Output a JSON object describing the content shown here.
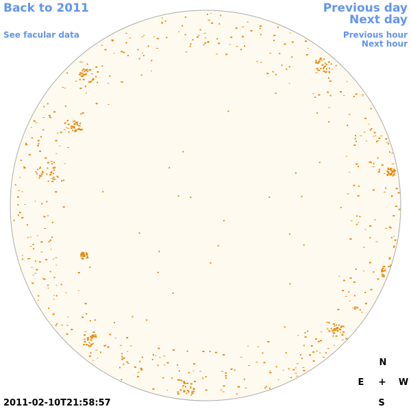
{
  "nav": {
    "back_year": "Back to 2011",
    "see_facular": "See facular data",
    "previous_day": "Previous day",
    "next_day": "Next day",
    "previous_hour": "Previous hour",
    "next_hour": "Next hour"
  },
  "compass": {
    "north": "N",
    "east": "E",
    "center": "+",
    "west": "W",
    "south": "S"
  },
  "timestamp": "2011-02-10T21:58:57",
  "colors": {
    "link": "#6495ed",
    "disk_fill": "#fffaf0",
    "disk_outline": "#aaaaaa",
    "feature": "#e8890c"
  }
}
